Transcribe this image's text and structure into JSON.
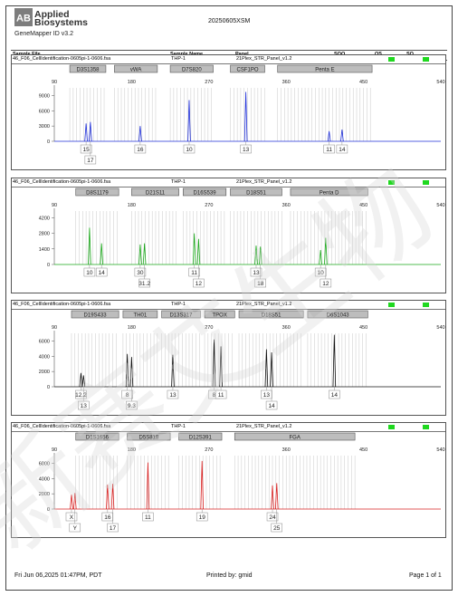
{
  "brand": {
    "line1": "Applied",
    "line2": "Biosystems",
    "logo": "AB"
  },
  "app_version": "GeneMapper ID v3.2",
  "run_name": "20250605XSM",
  "columns": {
    "sample_file": "Sample File",
    "sample_name": "Sample Name",
    "panel": "Panel",
    "sqo": "SQO",
    "os": "OS",
    "sq": "SQ"
  },
  "footer": {
    "date": "Fri Jun 06,2025 01:47PM, PDT",
    "printed_by": "Printed by: gmid",
    "page": "Page 1 of 1"
  },
  "watermark": "新赛艾生物",
  "chart_data": [
    {
      "type": "electropherogram",
      "file": "46_F06_CellIdentification-0605pi-1-0606.fsa",
      "sample": "THP-1",
      "panel": "21Plex_STR_Panel_v1.2",
      "color": "#1f2fd8",
      "x_ticks": [
        90,
        180,
        270,
        360,
        450,
        540
      ],
      "xlim": [
        90,
        540
      ],
      "y_ticks": [
        0,
        3000,
        6000,
        9000
      ],
      "ylim": [
        0,
        10500
      ],
      "loci": [
        {
          "name": "D3S1358",
          "range": [
            108,
            150
          ]
        },
        {
          "name": "vWA",
          "range": [
            160,
            210
          ]
        },
        {
          "name": "D7S820",
          "range": [
            225,
            275
          ]
        },
        {
          "name": "CSF1PO",
          "range": [
            295,
            335
          ]
        },
        {
          "name": "Penta E",
          "range": [
            350,
            460
          ]
        }
      ],
      "peaks": [
        {
          "x": 127,
          "y": 3500
        },
        {
          "x": 132,
          "y": 3800
        },
        {
          "x": 190,
          "y": 3000
        },
        {
          "x": 247,
          "y": 8100
        },
        {
          "x": 313,
          "y": 9700
        },
        {
          "x": 410,
          "y": 2000
        },
        {
          "x": 425,
          "y": 2300
        }
      ],
      "alleles": [
        {
          "x": 127,
          "label": "15",
          "row": 1
        },
        {
          "x": 132,
          "label": "17",
          "row": 2
        },
        {
          "x": 190,
          "label": "16",
          "row": 1
        },
        {
          "x": 247,
          "label": "10",
          "row": 1
        },
        {
          "x": 313,
          "label": "13",
          "row": 1
        },
        {
          "x": 410,
          "label": "11",
          "row": 1
        },
        {
          "x": 425,
          "label": "14",
          "row": 1
        }
      ]
    },
    {
      "type": "electropherogram",
      "file": "46_F06_CellIdentification-0605pi-1-0606.fsa",
      "sample": "THP-1",
      "panel": "21Plex_STR_Panel_v1.2",
      "color": "#1aa81a",
      "x_ticks": [
        90,
        180,
        270,
        360,
        450,
        540
      ],
      "xlim": [
        90,
        540
      ],
      "y_ticks": [
        0,
        1400,
        2800,
        4200
      ],
      "ylim": [
        0,
        4800
      ],
      "loci": [
        {
          "name": "D8S1179",
          "range": [
            115,
            165
          ]
        },
        {
          "name": "D21S11",
          "range": [
            180,
            235
          ]
        },
        {
          "name": "D16S539",
          "range": [
            240,
            290
          ]
        },
        {
          "name": "D18S51",
          "range": [
            295,
            355
          ]
        },
        {
          "name": "Penta D",
          "range": [
            365,
            455
          ]
        }
      ],
      "peaks": [
        {
          "x": 131,
          "y": 3300
        },
        {
          "x": 145,
          "y": 1900
        },
        {
          "x": 190,
          "y": 1800
        },
        {
          "x": 195,
          "y": 1900
        },
        {
          "x": 253,
          "y": 2800
        },
        {
          "x": 258,
          "y": 2300
        },
        {
          "x": 325,
          "y": 1700
        },
        {
          "x": 330,
          "y": 1600
        },
        {
          "x": 400,
          "y": 1300
        },
        {
          "x": 406,
          "y": 2400
        }
      ],
      "alleles": [
        {
          "x": 131,
          "label": "10",
          "row": 1
        },
        {
          "x": 145,
          "label": "14",
          "row": 1
        },
        {
          "x": 190,
          "label": "30",
          "row": 1
        },
        {
          "x": 195,
          "label": "31.2",
          "row": 2
        },
        {
          "x": 253,
          "label": "11",
          "row": 1
        },
        {
          "x": 258,
          "label": "12",
          "row": 2
        },
        {
          "x": 325,
          "label": "13",
          "row": 1
        },
        {
          "x": 330,
          "label": "18",
          "row": 2
        },
        {
          "x": 400,
          "label": "10",
          "row": 1
        },
        {
          "x": 406,
          "label": "12",
          "row": 2
        }
      ]
    },
    {
      "type": "electropherogram",
      "file": "46_F06_CellIdentification-0605pi-1-0606.fsa",
      "sample": "THP-1",
      "panel": "21Plex_STR_Panel_v1.2",
      "color": "#111111",
      "x_ticks": [
        90,
        180,
        270,
        360,
        450,
        540
      ],
      "xlim": [
        90,
        540
      ],
      "y_ticks": [
        0,
        2000,
        4000,
        6000
      ],
      "ylim": [
        0,
        7000
      ],
      "loci": [
        {
          "name": "D19S433",
          "range": [
            110,
            165
          ]
        },
        {
          "name": "TH01",
          "range": [
            170,
            210
          ]
        },
        {
          "name": "D13S317",
          "range": [
            215,
            260
          ]
        },
        {
          "name": "TPOX",
          "range": [
            265,
            300
          ]
        },
        {
          "name": "D18S51",
          "range": [
            305,
            380
          ]
        },
        {
          "name": "D6S1043",
          "range": [
            385,
            455
          ]
        }
      ],
      "peaks": [
        {
          "x": 121,
          "y": 1800
        },
        {
          "x": 124,
          "y": 1500
        },
        {
          "x": 175,
          "y": 4300
        },
        {
          "x": 180,
          "y": 3900
        },
        {
          "x": 228,
          "y": 4200
        },
        {
          "x": 276,
          "y": 6200
        },
        {
          "x": 284,
          "y": 5300
        },
        {
          "x": 337,
          "y": 4900
        },
        {
          "x": 343,
          "y": 4500
        },
        {
          "x": 416,
          "y": 6800
        }
      ],
      "alleles": [
        {
          "x": 121,
          "label": "12.2",
          "row": 1
        },
        {
          "x": 124,
          "label": "13",
          "row": 2
        },
        {
          "x": 175,
          "label": "8",
          "row": 1
        },
        {
          "x": 180,
          "label": "9.3",
          "row": 2
        },
        {
          "x": 228,
          "label": "13",
          "row": 1
        },
        {
          "x": 276,
          "label": "8",
          "row": 1
        },
        {
          "x": 284,
          "label": "11",
          "row": 1
        },
        {
          "x": 337,
          "label": "13",
          "row": 1
        },
        {
          "x": 343,
          "label": "14",
          "row": 2
        },
        {
          "x": 416,
          "label": "14",
          "row": 1
        }
      ]
    },
    {
      "type": "electropherogram",
      "file": "46_F06_CellIdentification-0605pi-1-0606.fsa",
      "sample": "THP-1",
      "panel": "21Plex_STR_Panel_v1.2",
      "color": "#d82020",
      "x_ticks": [
        90,
        180,
        270,
        360,
        450,
        540
      ],
      "xlim": [
        90,
        540
      ],
      "y_ticks": [
        0,
        2000,
        4000,
        6000
      ],
      "ylim": [
        0,
        7000
      ],
      "loci": [
        {
          "name": "D1S1656",
          "range": [
            115,
            165
          ]
        },
        {
          "name": "D5S818",
          "range": [
            175,
            225
          ]
        },
        {
          "name": "D12S391",
          "range": [
            235,
            285
          ]
        },
        {
          "name": "FGA",
          "range": [
            300,
            440
          ]
        }
      ],
      "peaks": [
        {
          "x": 110,
          "y": 1900
        },
        {
          "x": 114,
          "y": 2100
        },
        {
          "x": 152,
          "y": 3200
        },
        {
          "x": 158,
          "y": 3300
        },
        {
          "x": 199,
          "y": 6100
        },
        {
          "x": 262,
          "y": 6300
        },
        {
          "x": 344,
          "y": 3100
        },
        {
          "x": 349,
          "y": 3400
        }
      ],
      "alleles": [
        {
          "x": 110,
          "label": "X",
          "row": 1
        },
        {
          "x": 114,
          "label": "Y",
          "row": 2
        },
        {
          "x": 152,
          "label": "16",
          "row": 1
        },
        {
          "x": 158,
          "label": "17",
          "row": 2
        },
        {
          "x": 199,
          "label": "11",
          "row": 1
        },
        {
          "x": 262,
          "label": "19",
          "row": 1
        },
        {
          "x": 344,
          "label": "24",
          "row": 1
        },
        {
          "x": 349,
          "label": "25",
          "row": 2
        }
      ]
    }
  ]
}
